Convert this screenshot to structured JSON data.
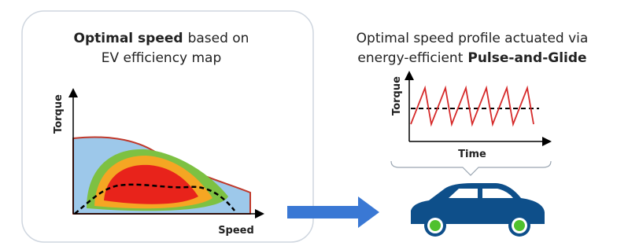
{
  "left_panel": {
    "title_bold": "Optimal speed",
    "title_rest": "based on",
    "title_line2": "EV efficiency map",
    "y_axis": "Torque",
    "x_axis": "Speed"
  },
  "right_panel": {
    "title_line1": "Optimal speed profile actuated via",
    "title_line2": "energy-efficient",
    "title_bold": "Pulse-and-Glide",
    "y_axis": "Torque",
    "x_axis": "Time"
  }
}
